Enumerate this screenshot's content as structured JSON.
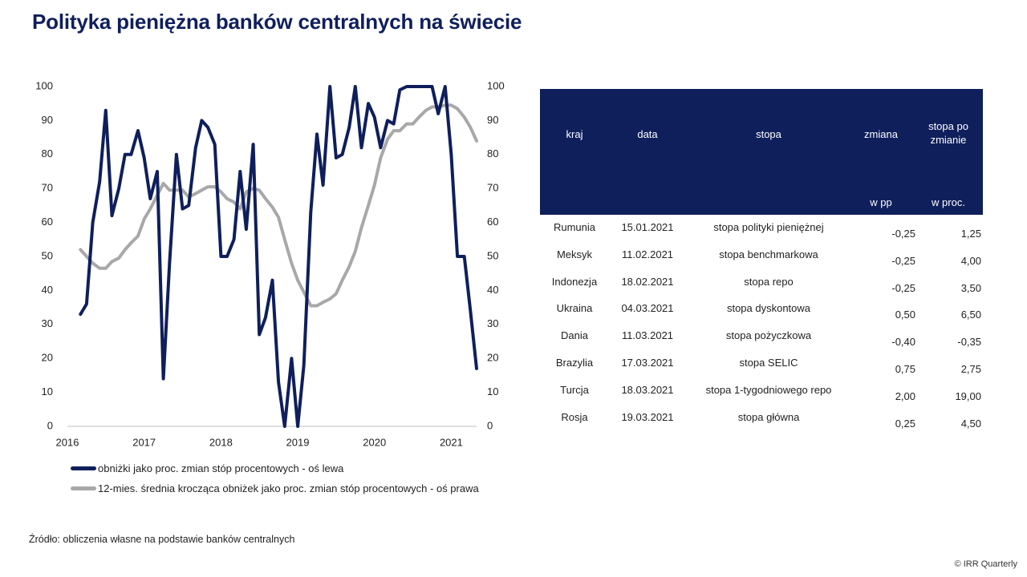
{
  "page": {
    "title": "Polityka pieniężna banków centralnych na świecie",
    "source": "Źródło: obliczenia własne na podstawie banków centralnych",
    "copyright": "© IRR Quarterly"
  },
  "colors": {
    "primary": "#0f1f5c",
    "secondary": "#a8a8a8",
    "header_bg": "#0f1f5c"
  },
  "chart_data": {
    "type": "line",
    "x_ticks": [
      "2016",
      "2017",
      "2018",
      "2019",
      "2020",
      "2021"
    ],
    "y_left_ticks": [
      "0",
      "10",
      "20",
      "30",
      "40",
      "50",
      "60",
      "70",
      "80",
      "90",
      "100"
    ],
    "y_right_ticks": [
      "0",
      "10",
      "20",
      "30",
      "40",
      "50",
      "60",
      "70",
      "80",
      "90",
      "100"
    ],
    "ylim": [
      0,
      100
    ],
    "xlim": [
      2016.0,
      2021.33
    ],
    "grid": false,
    "legend_position": "bottom",
    "series": [
      {
        "name": "obniżki jako proc. zmian stóp procentowych - oś lewa",
        "axis": "left",
        "color": "#0f1f5c",
        "points": [
          [
            2016.17,
            33
          ],
          [
            2016.25,
            36
          ],
          [
            2016.33,
            60
          ],
          [
            2016.42,
            72
          ],
          [
            2016.5,
            93
          ],
          [
            2016.58,
            62
          ],
          [
            2016.67,
            70
          ],
          [
            2016.75,
            80
          ],
          [
            2016.83,
            80
          ],
          [
            2016.92,
            87
          ],
          [
            2017.0,
            79
          ],
          [
            2017.08,
            67
          ],
          [
            2017.17,
            75
          ],
          [
            2017.25,
            14
          ],
          [
            2017.33,
            48
          ],
          [
            2017.42,
            80
          ],
          [
            2017.5,
            64
          ],
          [
            2017.58,
            65
          ],
          [
            2017.67,
            82
          ],
          [
            2017.75,
            90
          ],
          [
            2017.83,
            88
          ],
          [
            2017.92,
            83
          ],
          [
            2018.0,
            50
          ],
          [
            2018.08,
            50
          ],
          [
            2018.17,
            55
          ],
          [
            2018.25,
            75
          ],
          [
            2018.33,
            58
          ],
          [
            2018.42,
            83
          ],
          [
            2018.5,
            27
          ],
          [
            2018.58,
            32
          ],
          [
            2018.67,
            43
          ],
          [
            2018.75,
            13
          ],
          [
            2018.83,
            0
          ],
          [
            2018.92,
            20
          ],
          [
            2019.0,
            0
          ],
          [
            2019.08,
            18
          ],
          [
            2019.17,
            63
          ],
          [
            2019.25,
            86
          ],
          [
            2019.33,
            71
          ],
          [
            2019.42,
            100
          ],
          [
            2019.5,
            79
          ],
          [
            2019.58,
            80
          ],
          [
            2019.67,
            88
          ],
          [
            2019.75,
            100
          ],
          [
            2019.83,
            82
          ],
          [
            2019.92,
            95
          ],
          [
            2020.0,
            91
          ],
          [
            2020.08,
            82
          ],
          [
            2020.17,
            90
          ],
          [
            2020.25,
            89
          ],
          [
            2020.33,
            99
          ],
          [
            2020.42,
            100
          ],
          [
            2020.5,
            100
          ],
          [
            2020.58,
            100
          ],
          [
            2020.67,
            100
          ],
          [
            2020.75,
            100
          ],
          [
            2020.83,
            92
          ],
          [
            2020.92,
            100
          ],
          [
            2021.0,
            80
          ],
          [
            2021.08,
            50
          ],
          [
            2021.17,
            50
          ],
          [
            2021.25,
            34
          ],
          [
            2021.33,
            17
          ]
        ]
      },
      {
        "name": "12-mies. średnia krocząca obniżek jako proc. zmian stóp procentowych - oś prawa",
        "axis": "right",
        "color": "#a8a8a8",
        "points": [
          [
            2016.17,
            52
          ],
          [
            2016.25,
            50
          ],
          [
            2016.33,
            48
          ],
          [
            2016.42,
            46.5
          ],
          [
            2016.5,
            46.5
          ],
          [
            2016.58,
            48.5
          ],
          [
            2016.67,
            49.5
          ],
          [
            2016.75,
            52
          ],
          [
            2016.83,
            54
          ],
          [
            2016.92,
            56
          ],
          [
            2017.0,
            61
          ],
          [
            2017.08,
            64
          ],
          [
            2017.17,
            68
          ],
          [
            2017.25,
            71.5
          ],
          [
            2017.33,
            69.5
          ],
          [
            2017.42,
            69.5
          ],
          [
            2017.5,
            69.5
          ],
          [
            2017.58,
            67.5
          ],
          [
            2017.67,
            68.5
          ],
          [
            2017.75,
            69.5
          ],
          [
            2017.83,
            70.5
          ],
          [
            2017.92,
            70.5
          ],
          [
            2018.0,
            69
          ],
          [
            2018.08,
            67
          ],
          [
            2018.17,
            66
          ],
          [
            2018.25,
            64
          ],
          [
            2018.33,
            69
          ],
          [
            2018.42,
            70
          ],
          [
            2018.5,
            69.5
          ],
          [
            2018.58,
            67
          ],
          [
            2018.67,
            64.5
          ],
          [
            2018.75,
            61.5
          ],
          [
            2018.83,
            55
          ],
          [
            2018.92,
            48
          ],
          [
            2019.0,
            43
          ],
          [
            2019.08,
            39.5
          ],
          [
            2019.17,
            35.5
          ],
          [
            2019.25,
            35.5
          ],
          [
            2019.33,
            36.5
          ],
          [
            2019.42,
            37.5
          ],
          [
            2019.5,
            39
          ],
          [
            2019.58,
            43
          ],
          [
            2019.67,
            47
          ],
          [
            2019.75,
            51.5
          ],
          [
            2019.83,
            58.5
          ],
          [
            2019.92,
            65
          ],
          [
            2020.0,
            71
          ],
          [
            2020.08,
            79
          ],
          [
            2020.17,
            84.5
          ],
          [
            2020.25,
            87
          ],
          [
            2020.33,
            87
          ],
          [
            2020.42,
            89
          ],
          [
            2020.5,
            89
          ],
          [
            2020.58,
            91
          ],
          [
            2020.67,
            93
          ],
          [
            2020.75,
            94
          ],
          [
            2020.83,
            94
          ],
          [
            2020.92,
            94.5
          ],
          [
            2021.0,
            94.5
          ],
          [
            2021.08,
            93.5
          ],
          [
            2021.17,
            91
          ],
          [
            2021.25,
            88
          ],
          [
            2021.33,
            84
          ]
        ]
      }
    ]
  },
  "table": {
    "headers": {
      "kraj": "kraj",
      "data": "data",
      "stopa": "stopa",
      "zmiana": "zmiana",
      "stopa_po_zmianie_1": "stopa po",
      "stopa_po_zmianie_2": "zmianie",
      "unit_pp": "w pp",
      "unit_proc": "w proc."
    },
    "rows": [
      {
        "kraj": "Rumunia",
        "data": "15.01.2021",
        "stopa": "stopa polityki pieniężnej",
        "zmiana": "-0,25",
        "po": "1,25"
      },
      {
        "kraj": "Meksyk",
        "data": "11.02.2021",
        "stopa": "stopa benchmarkowa",
        "zmiana": "-0,25",
        "po": "4,00"
      },
      {
        "kraj": "Indonezja",
        "data": "18.02.2021",
        "stopa": "stopa repo",
        "zmiana": "-0,25",
        "po": "3,50"
      },
      {
        "kraj": "Ukraina",
        "data": "04.03.2021",
        "stopa": "stopa dyskontowa",
        "zmiana": "0,50",
        "po": "6,50"
      },
      {
        "kraj": "Dania",
        "data": "11.03.2021",
        "stopa": "stopa pożyczkowa",
        "zmiana": "-0,40",
        "po": "-0,35"
      },
      {
        "kraj": "Brazylia",
        "data": "17.03.2021",
        "stopa": "stopa SELIC",
        "zmiana": "0,75",
        "po": "2,75"
      },
      {
        "kraj": "Turcja",
        "data": "18.03.2021",
        "stopa": "stopa 1-tygodniowego repo",
        "zmiana": "2,00",
        "po": "19,00"
      },
      {
        "kraj": "Rosja",
        "data": "19.03.2021",
        "stopa": "stopa główna",
        "zmiana": "0,25",
        "po": "4,50"
      }
    ]
  }
}
